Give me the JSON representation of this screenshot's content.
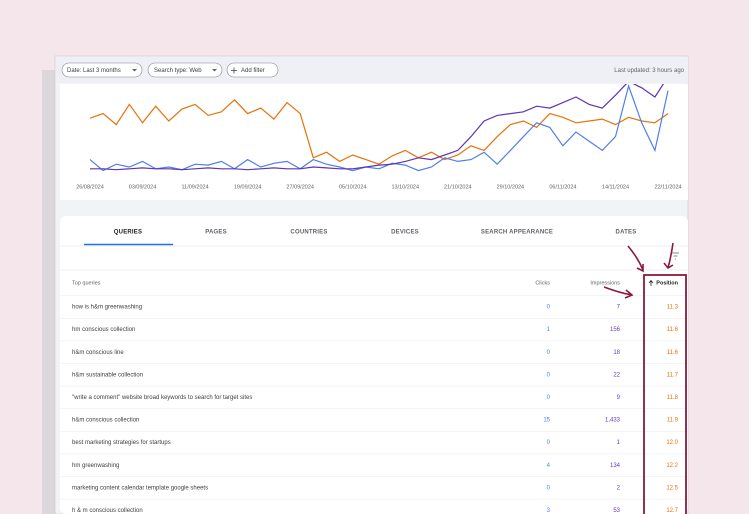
{
  "toolbar": {
    "filters": [
      "Date: Last 3 months",
      "Search type: Web",
      "Add filter"
    ],
    "last_updated": "Last updated: 3 hours ago"
  },
  "chart_data": {
    "type": "line",
    "x": [
      0,
      2,
      4,
      6,
      8,
      10,
      12,
      14,
      16,
      18,
      20,
      22,
      24,
      26,
      28,
      30,
      32,
      34,
      36,
      38,
      40,
      42,
      44,
      46,
      48,
      50,
      52,
      54,
      56,
      58,
      60,
      62,
      64,
      66,
      68,
      70,
      72,
      74,
      76,
      78,
      80,
      82,
      84,
      86,
      88
    ],
    "xlim": [
      0,
      88
    ],
    "ylim": [
      0,
      100
    ],
    "xticks": [
      {
        "value": 0,
        "label": "26/08/2024"
      },
      {
        "value": 8,
        "label": "03/09/2024"
      },
      {
        "value": 16,
        "label": "11/09/2024"
      },
      {
        "value": 24,
        "label": "19/09/2024"
      },
      {
        "value": 32,
        "label": "27/09/2024"
      },
      {
        "value": 40,
        "label": "05/10/2024"
      },
      {
        "value": 48,
        "label": "13/10/2024"
      },
      {
        "value": 56,
        "label": "21/10/2024"
      },
      {
        "value": 64,
        "label": "29/10/2024"
      },
      {
        "value": 72,
        "label": "06/11/2024"
      },
      {
        "value": 80,
        "label": "14/11/2024"
      },
      {
        "value": 88,
        "label": "22/11/2024"
      }
    ],
    "series": [
      {
        "color": "#e8710a",
        "values": [
          65,
          70,
          58,
          80,
          60,
          78,
          62,
          75,
          80,
          68,
          72,
          85,
          70,
          76,
          64,
          82,
          70,
          22,
          28,
          18,
          25,
          20,
          15,
          24,
          30,
          22,
          28,
          20,
          25,
          35,
          30,
          45,
          58,
          62,
          55,
          70,
          66,
          60,
          62,
          64,
          58,
          66,
          62,
          60,
          70
        ]
      },
      {
        "color": "#4f7fe8",
        "values": [
          20,
          8,
          15,
          12,
          18,
          10,
          12,
          9,
          15,
          14,
          18,
          10,
          20,
          12,
          16,
          18,
          10,
          20,
          15,
          12,
          8,
          12,
          10,
          16,
          14,
          8,
          12,
          22,
          18,
          20,
          28,
          15,
          30,
          45,
          60,
          55,
          35,
          50,
          40,
          30,
          45,
          100,
          60,
          30,
          95
        ]
      },
      {
        "color": "#5e35b1",
        "values": [
          10,
          10,
          9,
          10,
          11,
          10,
          10,
          9,
          10,
          11,
          10,
          10,
          9,
          10,
          11,
          10,
          10,
          12,
          11,
          10,
          10,
          12,
          14,
          15,
          18,
          22,
          20,
          25,
          30,
          45,
          62,
          68,
          70,
          72,
          78,
          76,
          82,
          88,
          80,
          76,
          90,
          105,
          98,
          88,
          110
        ]
      }
    ]
  },
  "tabs": [
    "QUERIES",
    "PAGES",
    "COUNTRIES",
    "DEVICES",
    "SEARCH APPEARANCE",
    "DATES"
  ],
  "table": {
    "columns": [
      "Top queries",
      "Clicks",
      "Impressions",
      "Position"
    ],
    "rows": [
      [
        "how is h&m greenwashing",
        "0",
        "7",
        "11.3"
      ],
      [
        "hm conscious collection",
        "1",
        "156",
        "11.6"
      ],
      [
        "h&m conscious line",
        "0",
        "18",
        "11.6"
      ],
      [
        "h&m sustainable collection",
        "0",
        "22",
        "11.7"
      ],
      [
        "\"write a comment\" website broad keywords to search for target sites",
        "0",
        "9",
        "11.8"
      ],
      [
        "h&m conscious collection",
        "15",
        "1,433",
        "11.9"
      ],
      [
        "best marketing strategies for startups",
        "0",
        "1",
        "12.0"
      ],
      [
        "hm greenwashing",
        "4",
        "134",
        "12.2"
      ],
      [
        "marketing content calendar template google sheets",
        "0",
        "2",
        "12.5"
      ],
      [
        "h & m conscious collection",
        "3",
        "53",
        "12.7"
      ]
    ]
  }
}
